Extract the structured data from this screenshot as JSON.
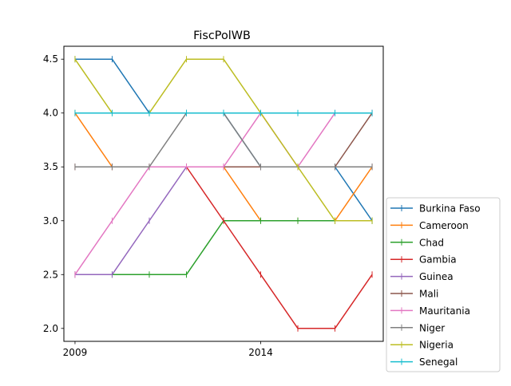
{
  "chart_data": {
    "type": "line",
    "title": "FiscPolWB",
    "xlabel": "",
    "ylabel": "",
    "x": [
      2009,
      2010,
      2011,
      2012,
      2013,
      2014,
      2015,
      2016,
      2017
    ],
    "xlim": [
      2008.7,
      2017.3
    ],
    "ylim": [
      1.88,
      4.62
    ],
    "xticks": [
      2009,
      2014
    ],
    "yticks": [
      2.0,
      2.5,
      3.0,
      3.5,
      4.0,
      4.5
    ],
    "ytick_labels": [
      "2.0",
      "2.5",
      "3.0",
      "3.5",
      "4.0",
      "4.5"
    ],
    "grid": false,
    "legend_placement": "outside-lower-right",
    "marker": "|",
    "series": [
      {
        "name": "Burkina Faso",
        "color": "#1f77b4",
        "values": [
          4.5,
          4.5,
          4.0,
          4.0,
          4.0,
          3.5,
          3.5,
          3.5,
          3.0
        ]
      },
      {
        "name": "Cameroon",
        "color": "#ff7f0e",
        "values": [
          4.0,
          3.5,
          3.5,
          3.5,
          3.5,
          3.0,
          3.0,
          3.0,
          3.5
        ]
      },
      {
        "name": "Chad",
        "color": "#2ca02c",
        "values": [
          2.5,
          2.5,
          2.5,
          2.5,
          3.0,
          3.0,
          3.0,
          3.0,
          3.0
        ]
      },
      {
        "name": "Gambia",
        "color": "#d62728",
        "values": [
          3.5,
          3.5,
          3.5,
          3.5,
          3.0,
          2.5,
          2.0,
          2.0,
          2.5
        ]
      },
      {
        "name": "Guinea",
        "color": "#9467bd",
        "values": [
          2.5,
          2.5,
          3.0,
          3.5,
          3.5,
          3.5,
          3.5,
          3.5,
          3.5
        ]
      },
      {
        "name": "Mali",
        "color": "#8c564b",
        "values": [
          3.5,
          3.5,
          3.5,
          3.5,
          3.5,
          3.5,
          3.5,
          3.5,
          4.0
        ]
      },
      {
        "name": "Mauritania",
        "color": "#e377c2",
        "values": [
          2.5,
          3.0,
          3.5,
          3.5,
          3.5,
          4.0,
          3.5,
          4.0,
          4.0
        ]
      },
      {
        "name": "Niger",
        "color": "#7f7f7f",
        "values": [
          3.5,
          3.5,
          3.5,
          4.0,
          4.0,
          3.5,
          3.5,
          3.5,
          3.5
        ]
      },
      {
        "name": "Nigeria",
        "color": "#bcbd22",
        "values": [
          4.5,
          4.0,
          4.0,
          4.5,
          4.5,
          4.0,
          3.5,
          3.0,
          3.0
        ]
      },
      {
        "name": "Senegal",
        "color": "#17becf",
        "values": [
          4.0,
          4.0,
          4.0,
          4.0,
          4.0,
          4.0,
          4.0,
          4.0,
          4.0
        ]
      }
    ]
  }
}
